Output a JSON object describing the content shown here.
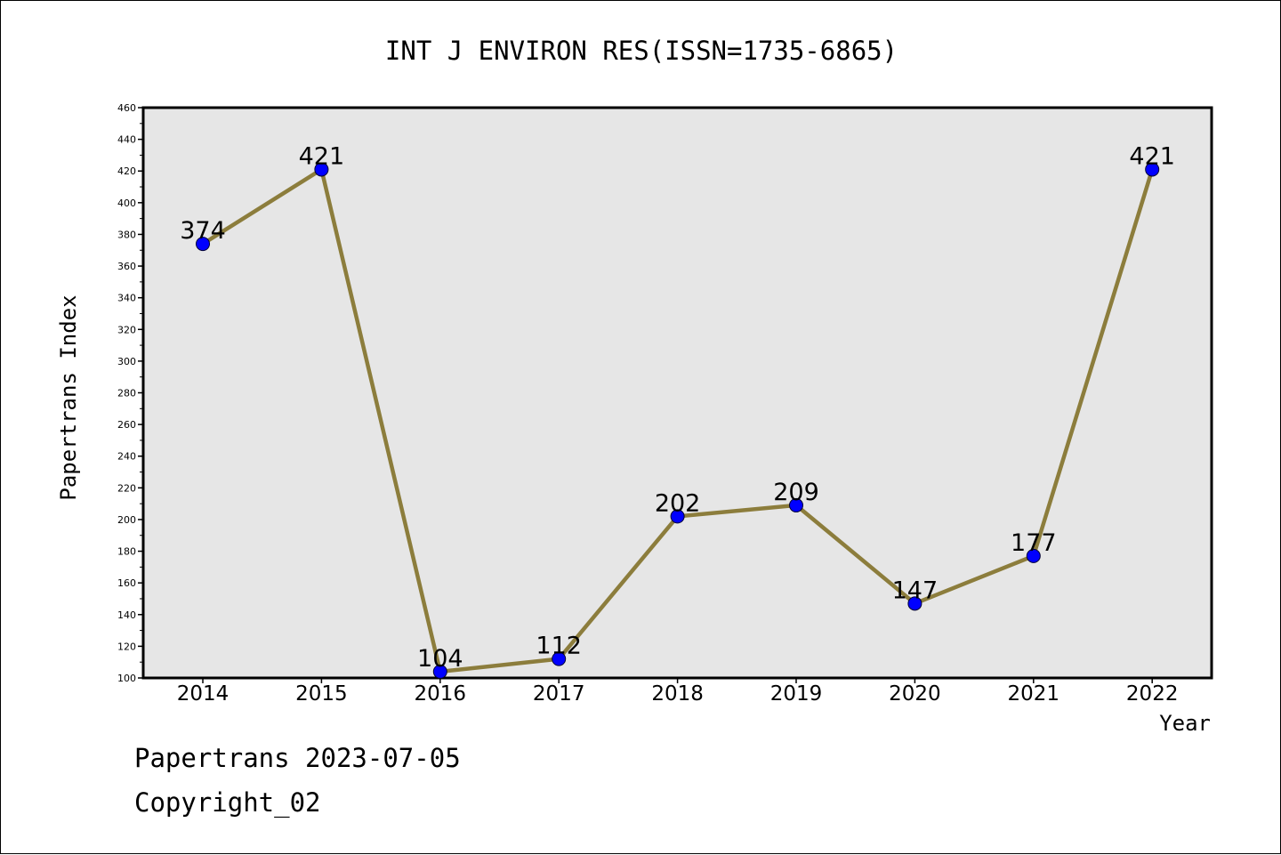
{
  "chart_data": {
    "type": "line",
    "title": "INT J ENVIRON RES(ISSN=1735-6865)",
    "xlabel": "Year",
    "ylabel": "Papertrans Index",
    "categories": [
      "2014",
      "2015",
      "2016",
      "2017",
      "2018",
      "2019",
      "2020",
      "2021",
      "2022"
    ],
    "series": [
      {
        "values": [
          374,
          421,
          104,
          112,
          202,
          209,
          147,
          177,
          421
        ]
      }
    ],
    "ylim": [
      100,
      460
    ],
    "yticks": [
      100,
      120,
      140,
      160,
      180,
      200,
      220,
      240,
      260,
      280,
      300,
      320,
      340,
      360,
      380,
      400,
      420,
      440,
      460
    ],
    "grid": false,
    "data_labels": true,
    "colors": {
      "line": "#8c7d3c",
      "marker": "#0000ff",
      "plot_background": "#e6e6e6"
    }
  },
  "footer": {
    "line1": "Papertrans 2023-07-05",
    "line2": "Copyright_02"
  }
}
